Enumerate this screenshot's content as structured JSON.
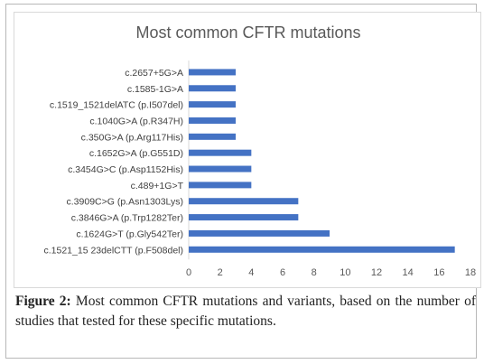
{
  "chart_data": {
    "type": "bar",
    "orientation": "horizontal",
    "title": "Most common CFTR mutations",
    "categories": [
      "c.2657+5G>A",
      "c.1585-1G>A",
      "c.1519_1521delATC (p.I507del)",
      "c.1040G>A (p.R347H)",
      "c.350G>A (p.Arg117His)",
      "c.1652G>A (p.G551D)",
      "c.3454G>C (p.Asp1152His)",
      "c.489+1G>T",
      "c.3909C>G (p.Asn1303Lys)",
      "c.3846G>A (p.Trp1282Ter)",
      "c.1624G>T (p.Gly542Ter)",
      "c.1521_15 23delCTT (p.F508del)"
    ],
    "values": [
      3,
      3,
      3,
      3,
      3,
      4,
      4,
      4,
      7,
      7,
      9,
      17
    ],
    "xlim": [
      0,
      18
    ],
    "xticks": [
      0,
      2,
      4,
      6,
      8,
      10,
      12,
      14,
      16,
      18
    ],
    "grid": false,
    "bar_color": "#4472c4"
  },
  "caption": {
    "label": "Figure 2:",
    "text": "Most common CFTR mutations and variants, based on the number of studies that tested for these specific mutations."
  }
}
